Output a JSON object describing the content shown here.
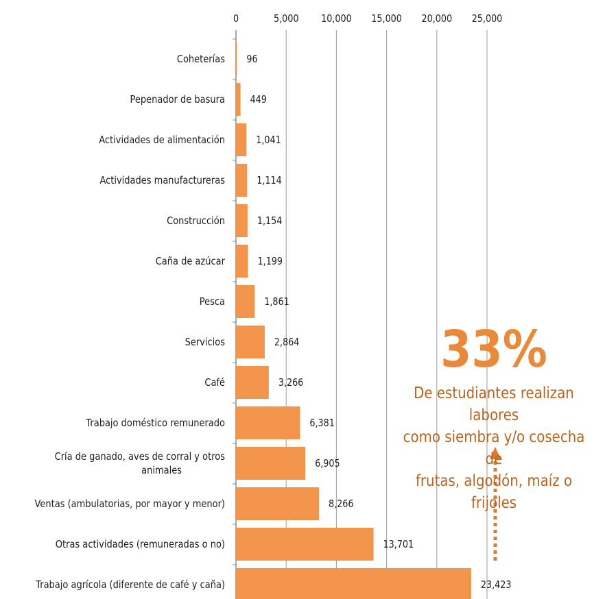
{
  "chart_data": {
    "type": "bar",
    "orientation": "horizontal",
    "categories": [
      "Coheterías",
      "Pepenador de basura",
      "Actividades de alimentación",
      "Actividades manufactureras",
      "Construcción",
      "Caña de azúcar",
      "Pesca",
      "Servicios",
      "Café",
      "Trabajo doméstico remunerado",
      [
        "Cría de ganado, aves de corral y otros",
        "animales"
      ],
      "Ventas (ambulatorias, por mayor y menor)",
      "Otras actividades (remuneradas o no)",
      "Trabajo agrícola (diferente de café y caña)"
    ],
    "values": [
      96,
      449,
      1041,
      1114,
      1154,
      1199,
      1861,
      2864,
      3266,
      6381,
      6905,
      8266,
      13701,
      23423
    ],
    "value_labels": [
      "96",
      "449",
      "1,041",
      "1,114",
      "1,154",
      "1,199",
      "1,861",
      "2,864",
      "3,266",
      "6,381",
      "6,905",
      "8,266",
      "13,701",
      "23,423"
    ],
    "xlim": [
      0,
      25000
    ],
    "xticks": [
      0,
      5000,
      10000,
      15000,
      20000,
      25000
    ],
    "xtick_labels": [
      "0",
      "5,000",
      "10,000",
      "15,000",
      "20,000",
      "25,000"
    ],
    "x_axis_position": "top",
    "grid": "vertical",
    "bar_color": "#f2954a"
  },
  "callout": {
    "percent": "33%",
    "lines": [
      "De estudiantes realizan labores",
      "como siembra y/o cosecha de",
      "frutas, algodón, maíz o frijoles"
    ],
    "color": "#b8641f",
    "accent_color": "#e88a3a"
  }
}
